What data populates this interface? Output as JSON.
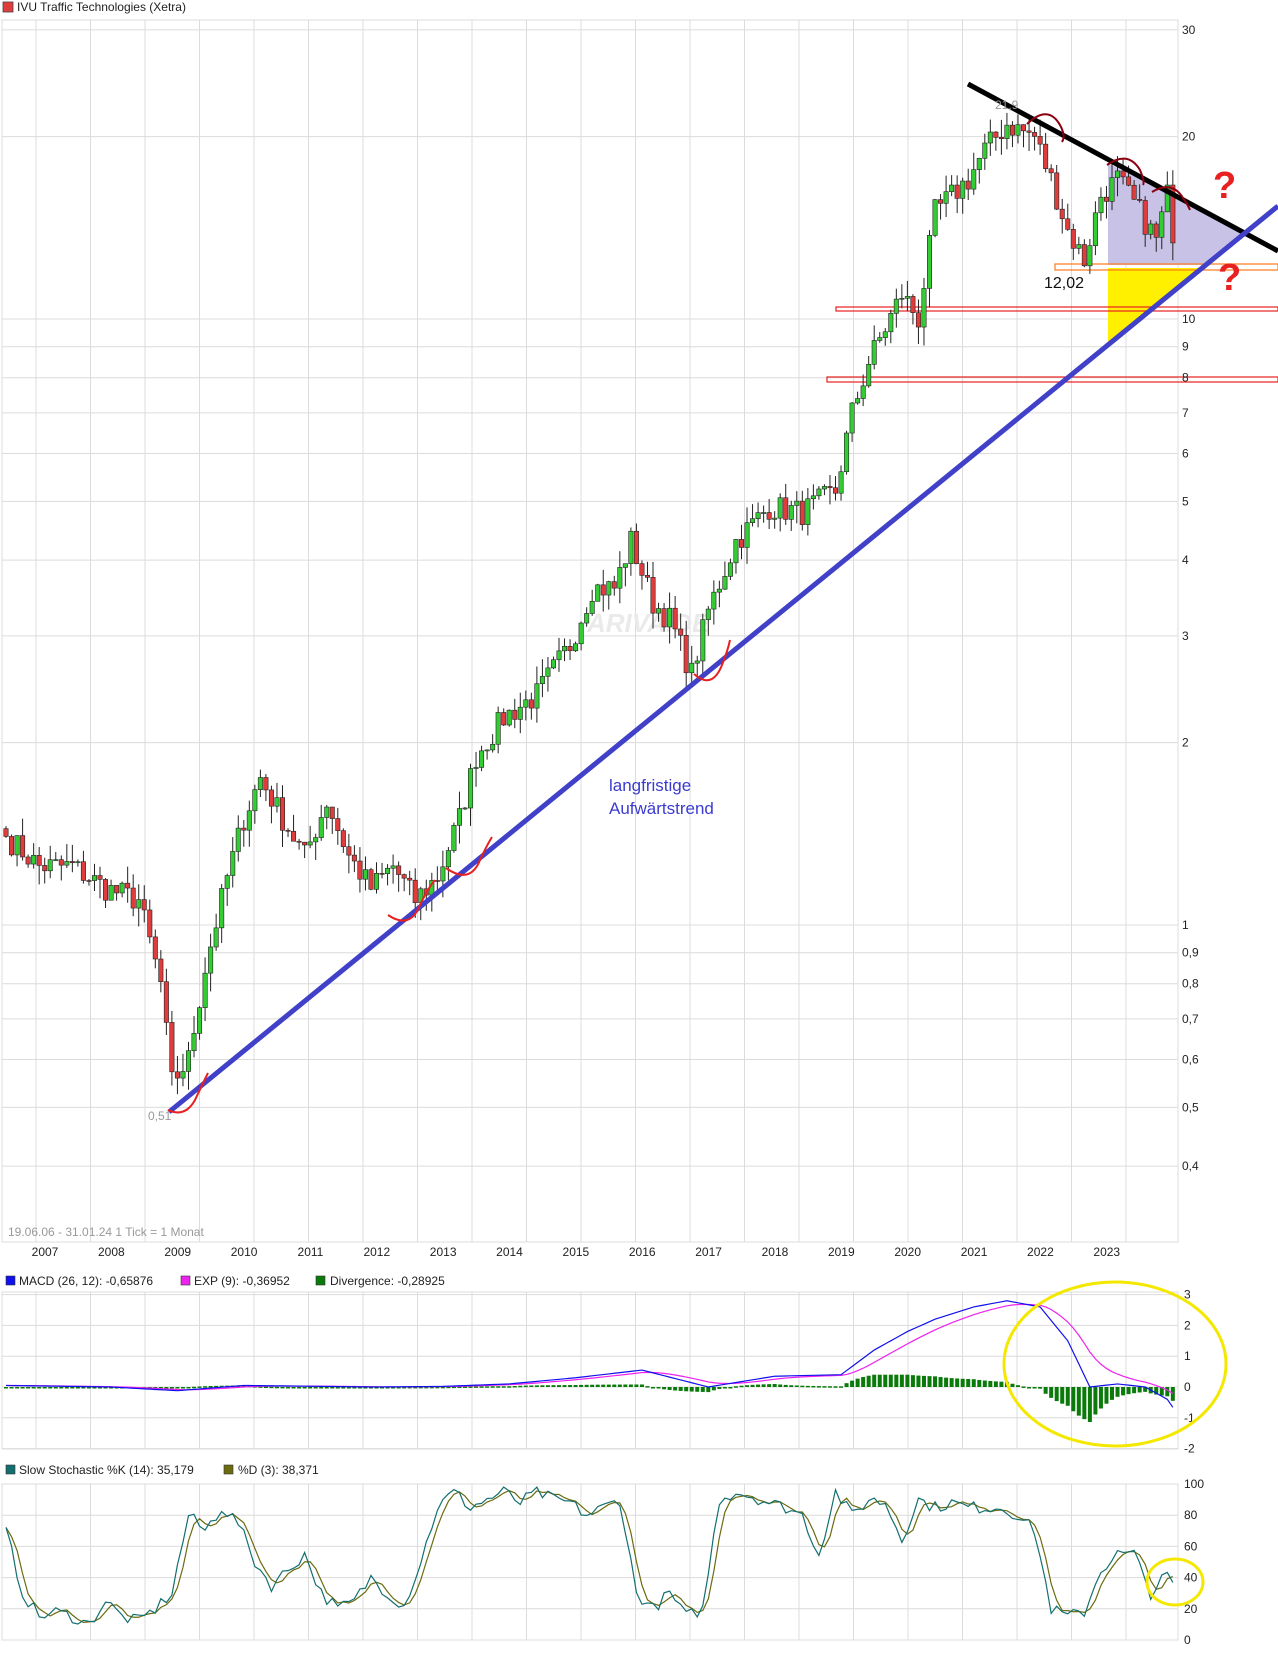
{
  "title": "IVU Traffic Technologies (Xetra)",
  "colors": {
    "up": "#33cc33",
    "down": "#e03c3c",
    "macd": "#1010ee",
    "exp": "#ee22ee",
    "divergence": "#0a7a0a",
    "stoch_k": "#136f6f",
    "stoch_d": "#6b6b10",
    "downtrend": "#000000",
    "uptrend": "#4040c8",
    "triangle": "#c8c3e6",
    "yellow_zone": "#fff000",
    "annotation_red": "#e82020",
    "annotation_darkred": "#8b0010",
    "ellipse": "#f5e800"
  },
  "chart_data": [
    {
      "type": "candlestick",
      "title": "IVU Traffic Technologies (Xetra)",
      "y_scale": "log",
      "ylim": [
        0.3,
        32
      ],
      "y_ticks": [
        "30",
        "20",
        "10",
        "9",
        "8",
        "7",
        "6",
        "5",
        "4",
        "3",
        "2",
        "1",
        "0,9",
        "0,8",
        "0,7",
        "0,6",
        "0,5",
        "0,4"
      ],
      "y_tick_values": [
        30,
        20,
        10,
        9,
        8,
        7,
        6,
        5,
        4,
        3,
        2,
        1,
        0.9,
        0.8,
        0.7,
        0.6,
        0.5,
        0.4
      ],
      "x_ticks": [
        "2007",
        "2008",
        "2009",
        "2010",
        "2011",
        "2012",
        "2013",
        "2014",
        "2015",
        "2016",
        "2017",
        "2018",
        "2019",
        "2020",
        "2021",
        "2022",
        "2023"
      ],
      "period_label": "19.06.06 - 31.01.24   1 Tick = 1 Monat",
      "interval": "monthly",
      "approx_close_anchors": [
        [
          "2006-06",
          1.4
        ],
        [
          "2006-12",
          1.25
        ],
        [
          "2007-06",
          1.25
        ],
        [
          "2007-12",
          1.15
        ],
        [
          "2008-06",
          1.1
        ],
        [
          "2008-10",
          0.8
        ],
        [
          "2008-12",
          0.55
        ],
        [
          "2009-03",
          0.6
        ],
        [
          "2009-06",
          0.85
        ],
        [
          "2009-10",
          1.2
        ],
        [
          "2010-01",
          1.5
        ],
        [
          "2010-04",
          1.75
        ],
        [
          "2010-08",
          1.5
        ],
        [
          "2010-12",
          1.3
        ],
        [
          "2011-04",
          1.6
        ],
        [
          "2011-08",
          1.3
        ],
        [
          "2011-12",
          1.15
        ],
        [
          "2012-04",
          1.25
        ],
        [
          "2012-08",
          1.1
        ],
        [
          "2012-12",
          1.2
        ],
        [
          "2013-04",
          1.5
        ],
        [
          "2013-07",
          1.9
        ],
        [
          "2013-12",
          2.2
        ],
        [
          "2014-06",
          2.4
        ],
        [
          "2014-12",
          2.9
        ],
        [
          "2015-04",
          3.6
        ],
        [
          "2015-08",
          3.6
        ],
        [
          "2015-11",
          4.3
        ],
        [
          "2016-03",
          3.4
        ],
        [
          "2016-06",
          3.2
        ],
        [
          "2016-10",
          2.6
        ],
        [
          "2017-01",
          3.3
        ],
        [
          "2017-06",
          4.3
        ],
        [
          "2017-12",
          4.9
        ],
        [
          "2018-06",
          4.8
        ],
        [
          "2018-12",
          5.2
        ],
        [
          "2019-03",
          7.0
        ],
        [
          "2019-06",
          8.5
        ],
        [
          "2019-12",
          11.0
        ],
        [
          "2020-03",
          10.0
        ],
        [
          "2020-06",
          15
        ],
        [
          "2020-12",
          17
        ],
        [
          "2021-03",
          19
        ],
        [
          "2021-07",
          21
        ],
        [
          "2021-12",
          20
        ],
        [
          "2022-03",
          17
        ],
        [
          "2022-06",
          14
        ],
        [
          "2022-09",
          12.5
        ],
        [
          "2022-12",
          16
        ],
        [
          "2023-03",
          17
        ],
        [
          "2023-07",
          15
        ],
        [
          "2023-10",
          13.5
        ],
        [
          "2023-12",
          16
        ],
        [
          "2024-01",
          14
        ]
      ],
      "annotations": {
        "low_label": "0,51",
        "high_label": "21,9",
        "support_label": "12,02",
        "trend_text_1": "langfristige",
        "trend_text_2": "Aufwärtstrend",
        "question_1": "?",
        "question_2": "?",
        "watermark": "ARIVA.DE",
        "support_zones": [
          12.02,
          10.5,
          8.0
        ]
      }
    },
    {
      "type": "line",
      "legend": {
        "macd": "MACD (26, 12): -0,65876",
        "exp": "EXP (9): -0,36952",
        "divergence": "Divergence: -0,28925"
      },
      "ylim": [
        -2,
        3
      ],
      "y_ticks": [
        "3",
        "2",
        "1",
        "0",
        "-1",
        "-2"
      ],
      "y_tick_values": [
        3,
        2,
        1,
        0,
        -1,
        -2
      ],
      "macd_anchors": [
        [
          "2006-06",
          0.05
        ],
        [
          "2008-01",
          0.0
        ],
        [
          "2009-01",
          -0.12
        ],
        [
          "2010-01",
          0.05
        ],
        [
          "2012-01",
          0.0
        ],
        [
          "2013-01",
          0.02
        ],
        [
          "2014-01",
          0.1
        ],
        [
          "2015-01",
          0.3
        ],
        [
          "2016-01",
          0.55
        ],
        [
          "2017-01",
          0.0
        ],
        [
          "2018-01",
          0.35
        ],
        [
          "2019-01",
          0.4
        ],
        [
          "2019-07",
          1.2
        ],
        [
          "2020-01",
          1.8
        ],
        [
          "2020-06",
          2.2
        ],
        [
          "2021-01",
          2.6
        ],
        [
          "2021-07",
          2.8
        ],
        [
          "2022-01",
          2.6
        ],
        [
          "2022-06",
          1.5
        ],
        [
          "2022-10",
          0.0
        ],
        [
          "2023-03",
          0.1
        ],
        [
          "2023-08",
          0.0
        ],
        [
          "2023-12",
          -0.4
        ],
        [
          "2024-01",
          -0.66
        ]
      ]
    },
    {
      "type": "line",
      "legend": {
        "k": "Slow Stochastic %K (14): 35,179",
        "d": "%D (3): 38,371"
      },
      "ylim": [
        0,
        100
      ],
      "y_ticks": [
        "100",
        "80",
        "60",
        "40",
        "20",
        "0"
      ],
      "y_tick_values": [
        100,
        80,
        60,
        40,
        20,
        0
      ],
      "k_anchors": [
        [
          "2006-06",
          70
        ],
        [
          "2006-09",
          30
        ],
        [
          "2006-12",
          15
        ],
        [
          "2007-03",
          18
        ],
        [
          "2007-06",
          15
        ],
        [
          "2007-09",
          10
        ],
        [
          "2007-12",
          25
        ],
        [
          "2008-03",
          15
        ],
        [
          "2008-06",
          12
        ],
        [
          "2008-09",
          20
        ],
        [
          "2008-12",
          30
        ],
        [
          "2009-03",
          80
        ],
        [
          "2009-06",
          70
        ],
        [
          "2009-09",
          85
        ],
        [
          "2009-12",
          75
        ],
        [
          "2010-03",
          50
        ],
        [
          "2010-06",
          35
        ],
        [
          "2010-09",
          45
        ],
        [
          "2010-12",
          55
        ],
        [
          "2011-03",
          30
        ],
        [
          "2011-06",
          20
        ],
        [
          "2011-09",
          25
        ],
        [
          "2011-12",
          40
        ],
        [
          "2012-03",
          30
        ],
        [
          "2012-06",
          22
        ],
        [
          "2012-09",
          50
        ],
        [
          "2012-12",
          85
        ],
        [
          "2013-03",
          95
        ],
        [
          "2013-06",
          85
        ],
        [
          "2013-09",
          90
        ],
        [
          "2013-12",
          95
        ],
        [
          "2014-03",
          88
        ],
        [
          "2014-06",
          95
        ],
        [
          "2014-09",
          90
        ],
        [
          "2014-12",
          88
        ],
        [
          "2015-03",
          80
        ],
        [
          "2015-06",
          85
        ],
        [
          "2015-09",
          90
        ],
        [
          "2015-12",
          30
        ],
        [
          "2016-03",
          20
        ],
        [
          "2016-06",
          30
        ],
        [
          "2016-09",
          15
        ],
        [
          "2016-12",
          20
        ],
        [
          "2017-03",
          90
        ],
        [
          "2017-06",
          95
        ],
        [
          "2017-09",
          92
        ],
        [
          "2017-12",
          88
        ],
        [
          "2018-03",
          85
        ],
        [
          "2018-06",
          80
        ],
        [
          "2018-09",
          55
        ],
        [
          "2018-12",
          95
        ],
        [
          "2019-03",
          80
        ],
        [
          "2019-06",
          90
        ],
        [
          "2019-09",
          88
        ],
        [
          "2019-12",
          65
        ],
        [
          "2020-03",
          90
        ],
        [
          "2020-06",
          85
        ],
        [
          "2020-09",
          88
        ],
        [
          "2020-12",
          85
        ],
        [
          "2021-03",
          85
        ],
        [
          "2021-06",
          85
        ],
        [
          "2021-09",
          80
        ],
        [
          "2021-12",
          70
        ],
        [
          "2022-03",
          20
        ],
        [
          "2022-06",
          15
        ],
        [
          "2022-09",
          18
        ],
        [
          "2022-12",
          45
        ],
        [
          "2023-03",
          55
        ],
        [
          "2023-06",
          55
        ],
        [
          "2023-09",
          30
        ],
        [
          "2023-12",
          42
        ],
        [
          "2024-01",
          35
        ]
      ]
    }
  ]
}
